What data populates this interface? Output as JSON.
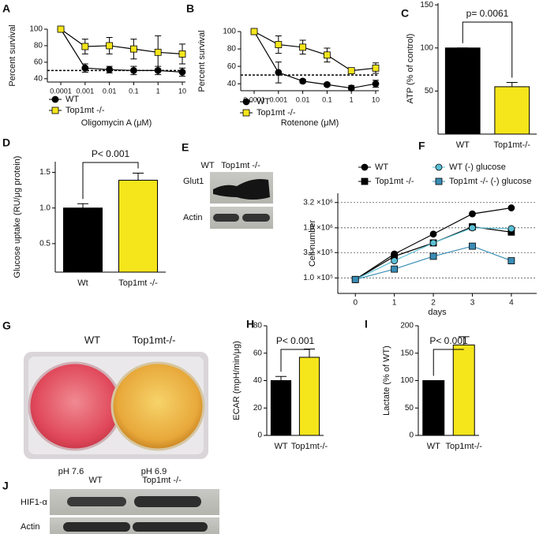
{
  "chart_data": [
    {
      "type": "line",
      "panel": "A",
      "ylabel": "Percent survival",
      "xlabel": "Oligomycin A (μM)",
      "xscale": "log",
      "x": [
        0.0001,
        0.001,
        0.01,
        0.1,
        1,
        10
      ],
      "xlim": [
        2.8e-05,
        13.5
      ],
      "xticks": [
        0.0001,
        0.001,
        0.01,
        0.1,
        1,
        10
      ],
      "ylim": [
        36,
        100
      ],
      "yticks": [
        40,
        60,
        80,
        100
      ],
      "reference_line": 50,
      "series": [
        {
          "name": "WT",
          "color": "#000000",
          "marker": "circle",
          "values": [
            100,
            53,
            51,
            50,
            50,
            48
          ],
          "errors": [
            0,
            5,
            4,
            5,
            5,
            5
          ]
        },
        {
          "name": "Top1mt -/-",
          "color": "#f5e51b",
          "marker": "square",
          "values": [
            100,
            79,
            80,
            76,
            72,
            70
          ],
          "errors": [
            0,
            9,
            10,
            12,
            20,
            12
          ]
        }
      ]
    },
    {
      "type": "line",
      "panel": "B",
      "ylabel": "Percent survival",
      "xlabel": "Rotenone (μM)",
      "xscale": "log",
      "x": [
        0.0001,
        0.001,
        0.01,
        0.1,
        1,
        10
      ],
      "xlim": [
        2.8e-05,
        13.5
      ],
      "xticks": [
        0.0001,
        0.001,
        0.01,
        0.1,
        1,
        10
      ],
      "ylim": [
        32,
        100
      ],
      "yticks": [
        40,
        60,
        80,
        100
      ],
      "reference_line": 50,
      "series": [
        {
          "name": "WT",
          "color": "#000000",
          "marker": "circle",
          "values": [
            100,
            53,
            43,
            39,
            35,
            40
          ],
          "errors": [
            0,
            12,
            2,
            2,
            3,
            4
          ]
        },
        {
          "name": "Top1mt -/-",
          "color": "#f5e51b",
          "marker": "square",
          "values": [
            100,
            85,
            82,
            73,
            55,
            58
          ],
          "errors": [
            0,
            10,
            8,
            8,
            3,
            6
          ]
        }
      ]
    },
    {
      "type": "bar",
      "panel": "C",
      "ylabel": "ATP (% of control)",
      "categories": [
        "WT",
        "Top1mt-/-"
      ],
      "values": [
        100,
        55
      ],
      "errors": [
        0,
        5
      ],
      "colors": [
        "#000000",
        "#f5e51b"
      ],
      "ylim": [
        0,
        152
      ],
      "yticks": [
        50,
        100,
        150
      ],
      "annotation": "p= 0.0061"
    },
    {
      "type": "bar",
      "panel": "D",
      "ylabel": "Glucose uptake (RU/μg protein)",
      "categories": [
        "Wt",
        "Top1mt -/-"
      ],
      "values": [
        1.0,
        1.39
      ],
      "errors": [
        0.06,
        0.1
      ],
      "colors": [
        "#000000",
        "#f5e51b"
      ],
      "ylim": [
        0.1,
        1.65
      ],
      "yticks": [
        {
          "value": 0.5,
          "label": "0.5"
        },
        {
          "value": 1.0,
          "label": "1.0"
        },
        {
          "value": 1.5,
          "label": "1.5"
        }
      ],
      "annotation": "P< 0.001"
    },
    {
      "type": "line",
      "panel": "F",
      "ylabel": "Cell number",
      "xlabel": "days",
      "yscale": "log",
      "grid": true,
      "x": [
        0,
        1,
        2,
        3,
        4
      ],
      "xlim": [
        -0.45,
        4.65
      ],
      "xticks": [
        0,
        1,
        2,
        3,
        4
      ],
      "ylim": [
        49000,
        4900000
      ],
      "yticks": [
        {
          "value": 100000,
          "label": "1.0 ×10⁵"
        },
        {
          "value": 320000,
          "label": "3.2 ×10⁵"
        },
        {
          "value": 1000000,
          "label": "1.0 ×10⁶"
        },
        {
          "value": 3200000,
          "label": "3.2 ×10⁶"
        }
      ],
      "series": [
        {
          "name": "WT",
          "color": "#000000",
          "marker": "circle",
          "values": [
            93000,
            300000,
            750000,
            1900000,
            2500000
          ]
        },
        {
          "name": "Top1mt -/-",
          "color": "#000000",
          "marker": "square",
          "values": [
            93000,
            270000,
            500000,
            1050000,
            820000
          ]
        },
        {
          "name": "WT (-) glucose",
          "color": "#5bc0d6",
          "marker": "circle",
          "values": [
            93000,
            220000,
            500000,
            1000000,
            960000
          ]
        },
        {
          "name": "Top1mt -/- (-) glucose",
          "color": "#3a8db5",
          "marker": "square",
          "values": [
            93000,
            150000,
            270000,
            430000,
            220000
          ]
        }
      ]
    },
    {
      "type": "bar",
      "panel": "H",
      "ylabel": "ECAR (mpH/min/μg)",
      "categories": [
        "WT",
        "Top1mt-/-"
      ],
      "values": [
        40,
        57
      ],
      "errors": [
        3,
        6
      ],
      "colors": [
        "#000000",
        "#f5e51b"
      ],
      "ylim": [
        0,
        80
      ],
      "yticks": [
        0,
        20,
        40,
        60,
        80
      ],
      "annotation": "P< 0.001"
    },
    {
      "type": "bar",
      "panel": "I",
      "ylabel": "Lactate (% of WT)",
      "categories": [
        "WT",
        "Top1mt-/-"
      ],
      "values": [
        100,
        165
      ],
      "errors": [
        0,
        15
      ],
      "colors": [
        "#000000",
        "#f5e51b"
      ],
      "ylim": [
        0,
        200
      ],
      "yticks": [
        0,
        50,
        100,
        150,
        200
      ],
      "annotation": "P< 0.001"
    }
  ],
  "figures": [
    {
      "panel": "E",
      "columns": [
        "WT",
        "Top1mt -/-"
      ],
      "rows": [
        "Glut1",
        "Actin"
      ]
    },
    {
      "panel": "G",
      "columns": [
        "WT",
        "Top1mt-/-"
      ],
      "captions": [
        "pH 7.6",
        "pH 6.9"
      ]
    },
    {
      "panel": "J",
      "columns": [
        "WT",
        "Top1mt -/-"
      ],
      "rows": [
        "HIF1-α",
        "Actin"
      ]
    }
  ]
}
